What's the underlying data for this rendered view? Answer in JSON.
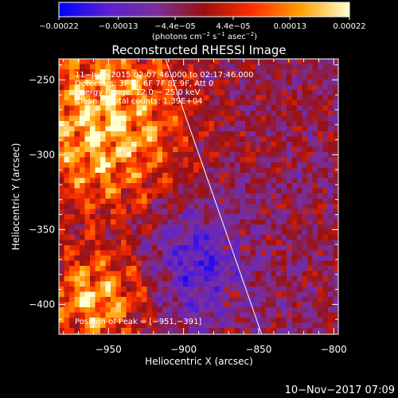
{
  "chart_data": {
    "type": "heatmap",
    "title": "Reconstructed RHESSI Image",
    "xlabel": "Heliocentric X (arcsec)",
    "ylabel": "Heliocentric Y (arcsec)",
    "xlim": [
      -983,
      -797
    ],
    "ylim": [
      -420,
      -236
    ],
    "x_ticks": [
      {
        "value": -950,
        "label": "−950"
      },
      {
        "value": -900,
        "label": "−900"
      },
      {
        "value": -850,
        "label": "−850"
      },
      {
        "value": -800,
        "label": "−800"
      }
    ],
    "y_ticks": [
      {
        "value": -250,
        "label": "−250"
      },
      {
        "value": -300,
        "label": "−300"
      },
      {
        "value": -350,
        "label": "−350"
      },
      {
        "value": -400,
        "label": "−400"
      }
    ],
    "colorbar": {
      "range": [
        -0.00022,
        0.00022
      ],
      "ticks": [
        {
          "value": -0.00022,
          "label": "−0.00022"
        },
        {
          "value": -0.00013,
          "label": "−0.00013"
        },
        {
          "value": -4.4e-05,
          "label": "−4.4e−05"
        },
        {
          "value": 4.4e-05,
          "label": "4.4e−05"
        },
        {
          "value": 0.00013,
          "label": "0.00013"
        },
        {
          "value": 0.00022,
          "label": "0.00022"
        }
      ],
      "unit_prefix": "(photons cm",
      "unit_exp1": "−2",
      "unit_mid": " s",
      "unit_exp2": "−1",
      "unit_mid2": " asec",
      "unit_exp3": "−2",
      "unit_suffix": ")",
      "colors": [
        "#0000ff",
        "#5a20d0",
        "#7a2f9a",
        "#9a1010",
        "#ff3000",
        "#ffa000",
        "#ffffd0"
      ]
    },
    "annotations": {
      "line1": "11−Jun−2015 02:07:46.000 to 02:17:46.000",
      "line2": "Detectors: 3F 5F 6F 7F 8F 9F, Att 0",
      "line3": "Energy Range: 12.0 − 25.0 keV",
      "line4": "Clean     Total counts: 1.39E+04",
      "peak": "Position of Peak = [−951,−391]"
    },
    "peak_position": [
      -951,
      -391
    ],
    "limb_line": {
      "from": [
        -912,
        -236
      ],
      "to": [
        -848,
        -420
      ]
    },
    "footer": "10−Nov−2017 07:09"
  }
}
